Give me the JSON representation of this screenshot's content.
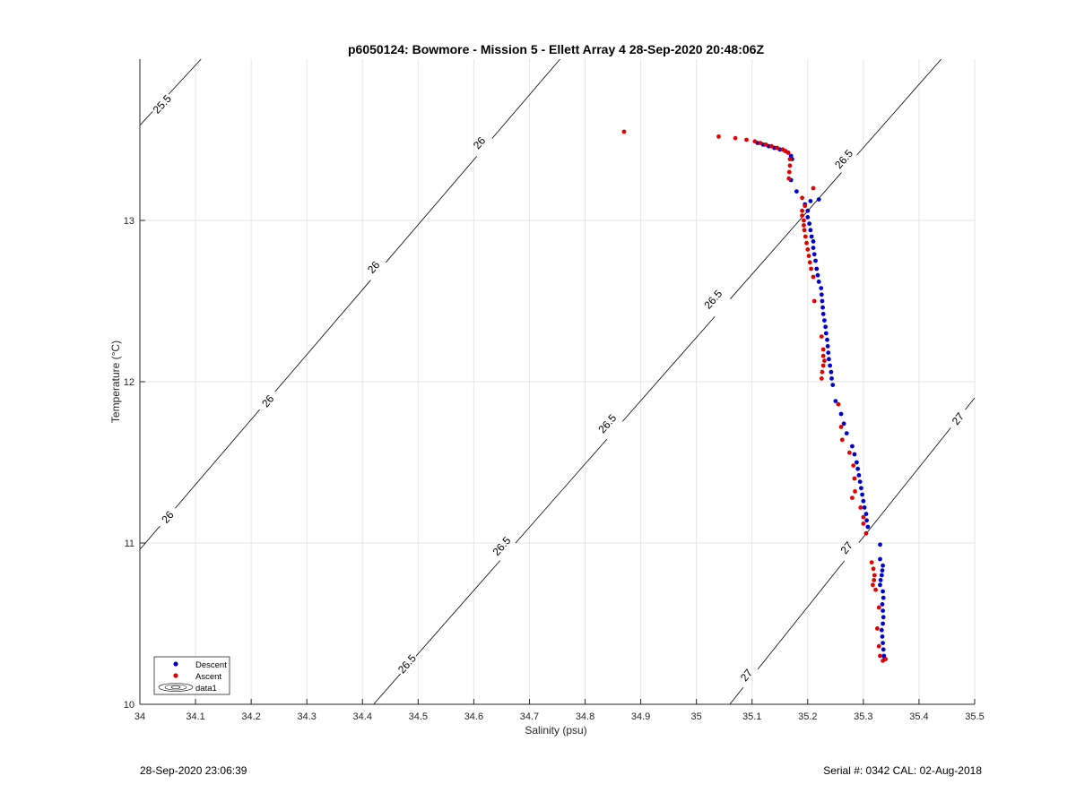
{
  "footer": {
    "timestamp": "28-Sep-2020 23:06:39",
    "serial_cal": "Serial #: 0342  CAL: 02-Aug-2018"
  },
  "colors": {
    "descent": "#0000cc",
    "ascent": "#e00000",
    "contour": "#000000",
    "grid": "#e6e6e6",
    "axis": "#262626"
  },
  "chart_data": {
    "type": "scatter",
    "title": "p6050124: Bowmore - Mission 5 - Ellett Array 4 28-Sep-2020 20:48:06Z",
    "xlabel": "Salinity (psu)",
    "ylabel": "Temperature (°C)",
    "xlim": [
      34,
      35.5
    ],
    "ylim": [
      10,
      14
    ],
    "x_ticks": [
      "34",
      "34.1",
      "34.2",
      "34.3",
      "34.4",
      "34.5",
      "34.6",
      "34.7",
      "34.8",
      "34.9",
      "35",
      "35.1",
      "35.2",
      "35.3",
      "35.4",
      "35.5"
    ],
    "y_ticks": [
      "10",
      "11",
      "12",
      "13"
    ],
    "grid": true,
    "legend": {
      "placement": "bottom-left",
      "entries": [
        "Descent",
        "Ascent",
        "data1"
      ]
    },
    "density_contours": [
      {
        "level": 25.5,
        "points": [
          [
            34.0,
            13.59
          ],
          [
            34.11,
            14.0
          ]
        ],
        "labels": [
          {
            "text": "25.5",
            "s": 34.04,
            "t": 13.72
          }
        ]
      },
      {
        "level": 26.0,
        "points": [
          [
            34.0,
            10.96
          ],
          [
            34.755,
            14.0
          ]
        ],
        "labels": [
          {
            "text": "26",
            "s": 34.05,
            "t": 11.16
          },
          {
            "text": "26",
            "s": 34.23,
            "t": 11.88
          },
          {
            "text": "26",
            "s": 34.42,
            "t": 12.71
          },
          {
            "text": "26",
            "s": 34.61,
            "t": 13.48
          }
        ]
      },
      {
        "level": 26.5,
        "points": [
          [
            34.42,
            10.0
          ],
          [
            35.44,
            14.0
          ]
        ],
        "labels": [
          {
            "text": "26.5",
            "s": 34.48,
            "t": 10.25
          },
          {
            "text": "26.5",
            "s": 34.65,
            "t": 10.98
          },
          {
            "text": "26.5",
            "s": 34.84,
            "t": 11.74
          },
          {
            "text": "26.5",
            "s": 35.03,
            "t": 12.51
          },
          {
            "text": "26.5",
            "s": 35.265,
            "t": 13.38
          }
        ]
      },
      {
        "level": 27.0,
        "points": [
          [
            35.06,
            10.0
          ],
          [
            35.5,
            11.9
          ]
        ],
        "labels": [
          {
            "text": "27",
            "s": 35.09,
            "t": 10.18
          },
          {
            "text": "27",
            "s": 35.27,
            "t": 10.97
          },
          {
            "text": "27",
            "s": 35.47,
            "t": 11.77
          }
        ]
      }
    ],
    "series": [
      {
        "name": "Descent",
        "color": "#0000cc",
        "points": [
          [
            35.11,
            13.48
          ],
          [
            35.12,
            13.47
          ],
          [
            35.13,
            13.46
          ],
          [
            35.14,
            13.45
          ],
          [
            35.15,
            13.44
          ],
          [
            35.16,
            13.43
          ],
          [
            35.165,
            13.42
          ],
          [
            35.17,
            13.4
          ],
          [
            35.172,
            13.38
          ],
          [
            35.17,
            13.25
          ],
          [
            35.18,
            13.18
          ],
          [
            35.195,
            13.1
          ],
          [
            35.2,
            13.06
          ],
          [
            35.2,
            13.02
          ],
          [
            35.203,
            12.98
          ],
          [
            35.205,
            12.94
          ],
          [
            35.207,
            12.9
          ],
          [
            35.21,
            12.87
          ],
          [
            35.21,
            12.83
          ],
          [
            35.212,
            12.79
          ],
          [
            35.214,
            12.75
          ],
          [
            35.216,
            12.7
          ],
          [
            35.218,
            12.66
          ],
          [
            35.22,
            12.62
          ],
          [
            35.224,
            12.58
          ],
          [
            35.225,
            12.54
          ],
          [
            35.226,
            12.5
          ],
          [
            35.227,
            12.46
          ],
          [
            35.228,
            12.42
          ],
          [
            35.23,
            12.38
          ],
          [
            35.232,
            12.34
          ],
          [
            35.233,
            12.3
          ],
          [
            35.235,
            12.26
          ],
          [
            35.236,
            12.22
          ],
          [
            35.237,
            12.18
          ],
          [
            35.238,
            12.14
          ],
          [
            35.24,
            12.1
          ],
          [
            35.242,
            12.06
          ],
          [
            35.243,
            12.02
          ],
          [
            35.245,
            11.98
          ],
          [
            35.25,
            11.88
          ],
          [
            35.26,
            11.8
          ],
          [
            35.265,
            11.74
          ],
          [
            35.27,
            11.68
          ],
          [
            35.28,
            11.6
          ],
          [
            35.284,
            11.55
          ],
          [
            35.288,
            11.5
          ],
          [
            35.29,
            11.46
          ],
          [
            35.292,
            11.42
          ],
          [
            35.294,
            11.38
          ],
          [
            35.296,
            11.34
          ],
          [
            35.298,
            11.3
          ],
          [
            35.3,
            11.26
          ],
          [
            35.302,
            11.22
          ],
          [
            35.305,
            11.18
          ],
          [
            35.306,
            11.14
          ],
          [
            35.308,
            11.1
          ],
          [
            35.33,
            10.99
          ],
          [
            35.33,
            10.9
          ],
          [
            35.335,
            10.86
          ],
          [
            35.334,
            10.83
          ],
          [
            35.333,
            10.8
          ],
          [
            35.331,
            10.77
          ],
          [
            35.33,
            10.74
          ],
          [
            35.335,
            10.7
          ],
          [
            35.336,
            10.66
          ],
          [
            35.334,
            10.62
          ],
          [
            35.335,
            10.58
          ],
          [
            35.336,
            10.54
          ],
          [
            35.335,
            10.5
          ],
          [
            35.333,
            10.46
          ],
          [
            35.334,
            10.42
          ],
          [
            35.335,
            10.38
          ],
          [
            35.336,
            10.34
          ],
          [
            35.337,
            10.3
          ],
          [
            35.338,
            10.28
          ],
          [
            35.22,
            13.13
          ],
          [
            35.205,
            13.12
          ]
        ]
      },
      {
        "name": "Ascent",
        "color": "#e00000",
        "points": [
          [
            34.87,
            13.55
          ],
          [
            35.04,
            13.52
          ],
          [
            35.07,
            13.51
          ],
          [
            35.09,
            13.5
          ],
          [
            35.105,
            13.49
          ],
          [
            35.115,
            13.48
          ],
          [
            35.125,
            13.47
          ],
          [
            35.135,
            13.46
          ],
          [
            35.145,
            13.45
          ],
          [
            35.155,
            13.44
          ],
          [
            35.16,
            13.43
          ],
          [
            35.165,
            13.42
          ],
          [
            35.168,
            13.38
          ],
          [
            35.168,
            13.34
          ],
          [
            35.167,
            13.3
          ],
          [
            35.166,
            13.26
          ],
          [
            35.21,
            13.2
          ],
          [
            35.19,
            13.14
          ],
          [
            35.195,
            13.09
          ],
          [
            35.19,
            13.06
          ],
          [
            35.19,
            13.03
          ],
          [
            35.193,
            13.0
          ],
          [
            35.193,
            12.97
          ],
          [
            35.194,
            12.94
          ],
          [
            35.196,
            12.9
          ],
          [
            35.198,
            12.86
          ],
          [
            35.2,
            12.82
          ],
          [
            35.202,
            12.78
          ],
          [
            35.204,
            12.74
          ],
          [
            35.206,
            12.7
          ],
          [
            35.21,
            12.65
          ],
          [
            35.212,
            12.5
          ],
          [
            35.225,
            12.28
          ],
          [
            35.228,
            12.2
          ],
          [
            35.228,
            12.16
          ],
          [
            35.23,
            12.13
          ],
          [
            35.228,
            12.1
          ],
          [
            35.226,
            12.06
          ],
          [
            35.225,
            12.02
          ],
          [
            35.255,
            11.86
          ],
          [
            35.26,
            11.72
          ],
          [
            35.262,
            11.64
          ],
          [
            35.275,
            11.56
          ],
          [
            35.282,
            11.48
          ],
          [
            35.284,
            11.4
          ],
          [
            35.285,
            11.32
          ],
          [
            35.28,
            11.28
          ],
          [
            35.295,
            11.22
          ],
          [
            35.3,
            11.16
          ],
          [
            35.3,
            11.12
          ],
          [
            35.305,
            11.06
          ],
          [
            35.315,
            10.88
          ],
          [
            35.318,
            10.84
          ],
          [
            35.32,
            10.8
          ],
          [
            35.319,
            10.77
          ],
          [
            35.317,
            10.74
          ],
          [
            35.322,
            10.71
          ],
          [
            35.328,
            10.6
          ],
          [
            35.325,
            10.47
          ],
          [
            35.328,
            10.36
          ],
          [
            35.33,
            10.3
          ],
          [
            35.335,
            10.27
          ],
          [
            35.34,
            10.28
          ]
        ]
      }
    ]
  }
}
